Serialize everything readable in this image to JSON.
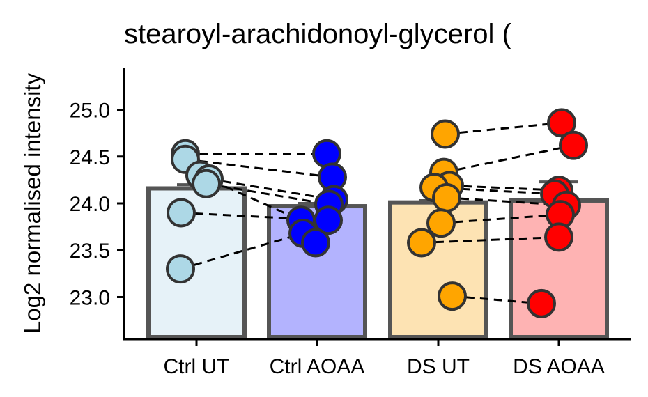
{
  "chart_data": {
    "type": "bar",
    "title": "stearoyl-arachidonoyl-glycerol (",
    "xlabel": "",
    "ylabel": "Log2 normalised intensity",
    "categories": [
      "Ctrl UT",
      "Ctrl AOAA",
      "DS UT",
      "DS AOAA"
    ],
    "values": [
      24.16,
      23.97,
      24.01,
      24.03
    ],
    "error_high": [
      24.2,
      24.0,
      24.03,
      24.23
    ],
    "ylim": [
      22.55,
      25.45
    ],
    "yticks": [
      "23.0",
      "23.5",
      "24.0",
      "24.5",
      "25.0"
    ],
    "bar_fill": [
      "#e6f2f8",
      "#b3b3fe",
      "#fde3b3",
      "#feb3b3"
    ],
    "point_fill": [
      "#add8e6",
      "#0000ff",
      "#ffa500",
      "#ff0000"
    ],
    "points": [
      [
        24.53,
        24.47,
        24.3,
        24.26,
        24.21,
        23.9,
        23.3
      ],
      [
        24.53,
        24.28,
        23.82,
        24.04,
        23.99,
        23.82,
        23.68,
        23.58
      ],
      [
        24.74,
        24.33,
        24.19,
        24.17,
        24.06,
        23.79,
        23.58,
        23.01
      ],
      [
        24.86,
        24.62,
        24.14,
        24.1,
        23.98,
        23.88,
        23.64,
        22.93
      ]
    ],
    "pairs": [
      [
        [
          24.53,
          24.53
        ],
        [
          24.47,
          24.28
        ],
        [
          24.3,
          23.82
        ],
        [
          24.26,
          24.04
        ],
        [
          24.21,
          23.99
        ],
        [
          23.9,
          23.82
        ],
        [
          23.3,
          23.68
        ]
      ],
      [
        [
          24.74,
          24.86
        ],
        [
          24.33,
          24.62
        ],
        [
          24.19,
          24.14
        ],
        [
          24.17,
          24.1
        ],
        [
          24.06,
          23.98
        ],
        [
          23.79,
          23.88
        ],
        [
          23.58,
          23.64
        ],
        [
          23.01,
          22.93
        ]
      ]
    ],
    "grid": false,
    "legend": "none"
  }
}
